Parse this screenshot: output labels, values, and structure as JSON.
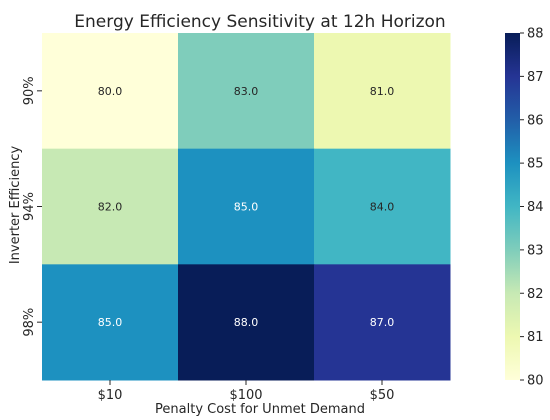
{
  "chart_data": {
    "type": "heatmap",
    "title": "Energy Efficiency Sensitivity at 12h Horizon",
    "xlabel": "Penalty Cost for Unmet Demand",
    "ylabel": "Inverter Efficiency",
    "x_categories": [
      "$10",
      "$100",
      "$50"
    ],
    "y_categories": [
      "90%",
      "94%",
      "98%"
    ],
    "values": [
      [
        80.0,
        83.0,
        81.0
      ],
      [
        82.0,
        85.0,
        84.0
      ],
      [
        85.0,
        88.0,
        87.0
      ]
    ],
    "value_format": "0.0",
    "colormap": "YlGnBu",
    "colorbar": {
      "min": 80,
      "max": 88,
      "ticks": [
        80,
        81,
        82,
        83,
        84,
        85,
        86,
        87,
        88
      ]
    },
    "colors": {
      "text_dark": "#262626",
      "text_light": "#ffffff"
    }
  }
}
